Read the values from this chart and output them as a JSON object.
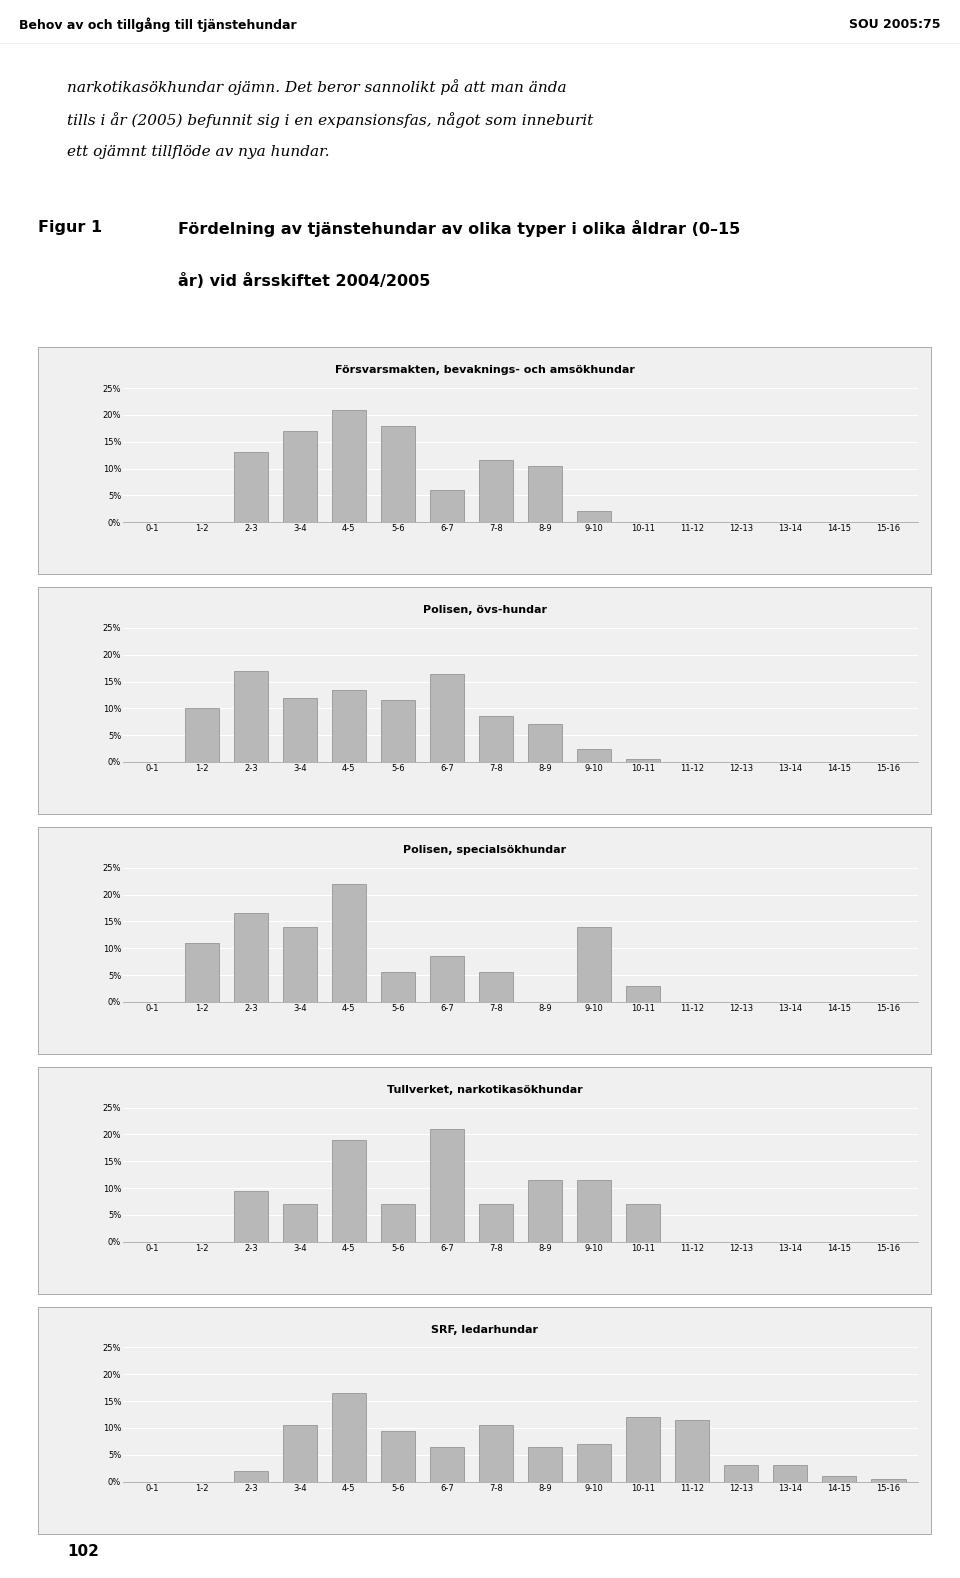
{
  "page_title": "Behov av och tillgång till tjänstehundar",
  "page_number": "SOU 2005:75",
  "body_text_line1": "narkotikasökhundar ojämn. Det beror sannolikt på att man ända",
  "body_text_line2": "tills i år (2005) befunnit sig i en expansionsfas, något som inneburit",
  "body_text_line3": "ett ojämnt tillflöde av nya hundar.",
  "fig_label": "Figur 1",
  "fig_title_line1": "Fördelning av tjänstehundar av olika typer i olika åldrar (0–15",
  "fig_title_line2": "år) vid årsskiftet 2004/2005",
  "categories": [
    "0-1",
    "1-2",
    "2-3",
    "3-4",
    "4-5",
    "5-6",
    "6-7",
    "7-8",
    "8-9",
    "9-10",
    "10-11",
    "11-12",
    "12-13",
    "13-14",
    "14-15",
    "15-16"
  ],
  "charts": [
    {
      "title": "Försvarsmakten, bevaknings- och amsökhundar",
      "values": [
        0,
        0,
        13,
        17,
        21,
        18,
        6,
        11.5,
        10.5,
        2,
        0,
        0,
        0,
        0,
        0,
        0
      ]
    },
    {
      "title": "Polisen, övs-hundar",
      "values": [
        0,
        10,
        17,
        12,
        13.5,
        11.5,
        16.5,
        8.5,
        7,
        2.5,
        0.5,
        0,
        0,
        0,
        0,
        0
      ]
    },
    {
      "title": "Polisen, specialsökhundar",
      "values": [
        0,
        11,
        16.5,
        14,
        22,
        5.5,
        8.5,
        5.5,
        0,
        14,
        3,
        0,
        0,
        0,
        0,
        0
      ]
    },
    {
      "title": "Tullverket, narkotikasökhundar",
      "values": [
        0,
        0,
        9.5,
        7,
        19,
        7,
        21,
        7,
        11.5,
        11.5,
        7,
        0,
        0,
        0,
        0,
        0
      ]
    },
    {
      "title": "SRF, ledarhundar",
      "values": [
        0,
        0,
        2,
        10.5,
        16.5,
        9.5,
        6.5,
        10.5,
        6.5,
        7,
        12,
        11.5,
        3,
        3,
        1,
        0.5
      ]
    }
  ],
  "bar_color": "#b8b8b8",
  "bar_edge_color": "#777777",
  "bg_page": "#ffffff",
  "bg_panel": "#f0f0f0",
  "ytick_labels": [
    "0%",
    "5%",
    "10%",
    "15%",
    "20%",
    "25%"
  ],
  "page_num": "102"
}
